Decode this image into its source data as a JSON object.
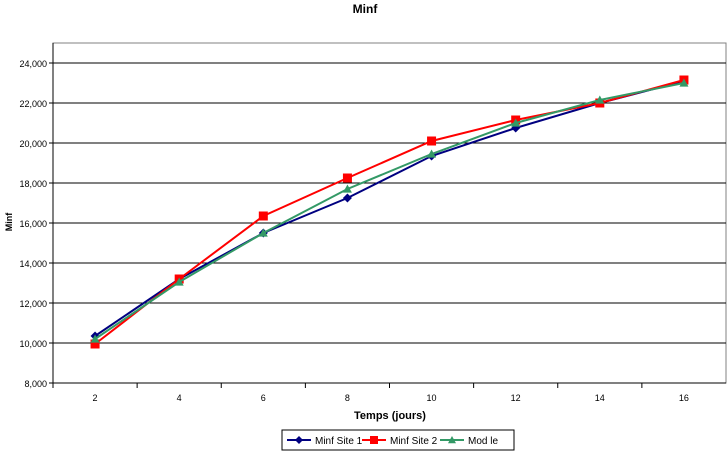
{
  "chart_data": {
    "type": "line",
    "title": "Minf",
    "xlabel": "Temps (jours)",
    "ylabel": "Minf",
    "categories": [
      "2",
      "4",
      "6",
      "8",
      "10",
      "12",
      "14",
      "16"
    ],
    "ylim": [
      8000,
      24000
    ],
    "yticks": [
      "8,000",
      "10,000",
      "12,000",
      "14,000",
      "16,000",
      "18,000",
      "20,000",
      "22,000",
      "24,000"
    ],
    "grid": true,
    "legend": "bottom",
    "series": [
      {
        "name": "Minf Site 1",
        "color": "#000080",
        "marker": "diamond",
        "values": [
          10350,
          13200,
          15500,
          17250,
          19350,
          20750,
          22000,
          23100
        ]
      },
      {
        "name": "Minf Site 2",
        "color": "#ff0000",
        "marker": "square",
        "values": [
          9950,
          13200,
          16350,
          18250,
          20100,
          21150,
          22000,
          23150
        ]
      },
      {
        "name": "Mod  le",
        "color": "#339966",
        "marker": "triangle",
        "values": [
          10200,
          13050,
          15500,
          17700,
          19450,
          21000,
          22150,
          23000
        ]
      }
    ]
  }
}
